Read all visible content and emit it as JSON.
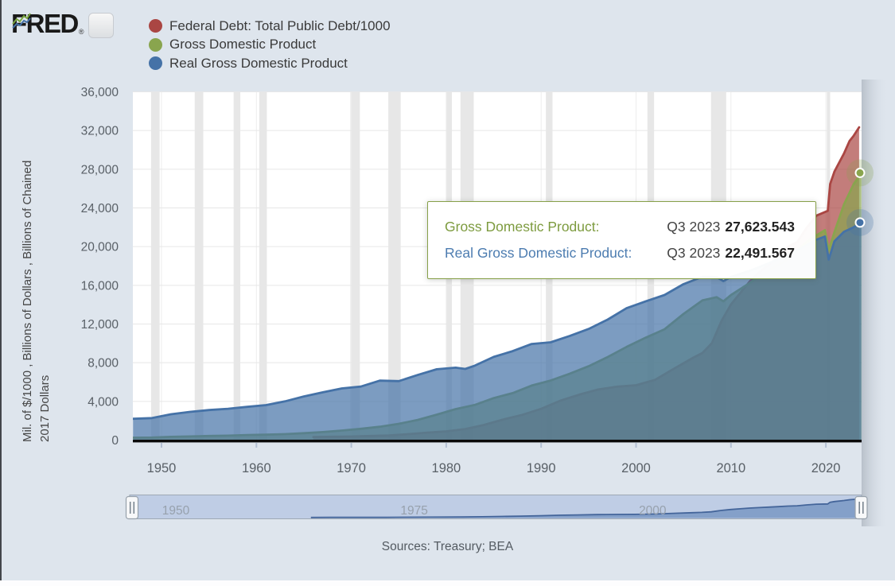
{
  "header": {
    "brand": "FRED",
    "brand_registered": "®",
    "logo_icon": "fred-sparkline-icon",
    "legend": [
      {
        "label": "Federal Debt: Total Public Debt/1000",
        "color": "#aa4643"
      },
      {
        "label": "Gross Domestic Product",
        "color": "#89a54e"
      },
      {
        "label": "Real Gross Domestic Product",
        "color": "#4572a7"
      }
    ]
  },
  "y_axis": {
    "title_line1": "Mil. of $/1000 , Billions of Dollars , Billions of Chained",
    "title_line2": "2017 Dollars"
  },
  "tooltip": {
    "rows": [
      {
        "label": "Gross Domestic Product:",
        "date": "Q3 2023",
        "value": "27,623.543",
        "color": "#7d9b3f"
      },
      {
        "label": "Real Gross Domestic Product:",
        "date": "Q3 2023",
        "value": "22,491.567",
        "color": "#4c7cb0"
      }
    ]
  },
  "slider": {
    "labels": [
      {
        "text": "1950",
        "year": 1950
      },
      {
        "text": "1975",
        "year": 1975
      },
      {
        "text": "2000",
        "year": 2000
      }
    ]
  },
  "footer": {
    "sources": "Sources: Treasury; BEA"
  },
  "chart_data": {
    "type": "area",
    "x_range": [
      1947,
      2023.75
    ],
    "ylim": [
      0,
      36000
    ],
    "grid": true,
    "legend_position": "top-left",
    "y_ticks": [
      0,
      4000,
      8000,
      12000,
      16000,
      20000,
      24000,
      28000,
      32000,
      36000
    ],
    "y_tick_labels": [
      "0",
      "4,000",
      "8,000",
      "12,000",
      "16,000",
      "20,000",
      "24,000",
      "28,000",
      "32,000",
      "36,000"
    ],
    "x_ticks": [
      1950,
      1960,
      1970,
      1980,
      1990,
      2000,
      2010,
      2020
    ],
    "x_tick_labels": [
      "1950",
      "1960",
      "1970",
      "1980",
      "1990",
      "2000",
      "2010",
      "2020"
    ],
    "recessions": [
      [
        1948.9,
        1949.8
      ],
      [
        1953.5,
        1954.4
      ],
      [
        1957.6,
        1958.3
      ],
      [
        1960.3,
        1961.1
      ],
      [
        1969.9,
        1970.9
      ],
      [
        1973.9,
        1975.2
      ],
      [
        1980.0,
        1980.6
      ],
      [
        1981.5,
        1982.9
      ],
      [
        1990.5,
        1991.2
      ],
      [
        2001.2,
        2001.9
      ],
      [
        2007.9,
        2009.5
      ],
      [
        2020.1,
        2020.45
      ]
    ],
    "series": [
      {
        "name": "Federal Debt: Total Public Debt/1000",
        "units": "Mil. of $/1000",
        "color": "#aa4643",
        "points": [
          [
            1966,
            320
          ],
          [
            1968,
            348
          ],
          [
            1970,
            371
          ],
          [
            1972,
            427
          ],
          [
            1974,
            475
          ],
          [
            1976,
            620
          ],
          [
            1978,
            772
          ],
          [
            1980,
            908
          ],
          [
            1982,
            1142
          ],
          [
            1984,
            1573
          ],
          [
            1986,
            2125
          ],
          [
            1988,
            2602
          ],
          [
            1990,
            3233
          ],
          [
            1992,
            4065
          ],
          [
            1994,
            4693
          ],
          [
            1996,
            5225
          ],
          [
            1998,
            5526
          ],
          [
            2000,
            5674
          ],
          [
            2002,
            6228
          ],
          [
            2004,
            7379
          ],
          [
            2006,
            8507
          ],
          [
            2007,
            9008
          ],
          [
            2008,
            10025
          ],
          [
            2009,
            12311
          ],
          [
            2010,
            14025
          ],
          [
            2011,
            15223
          ],
          [
            2012,
            16433
          ],
          [
            2013,
            17352
          ],
          [
            2014,
            18141
          ],
          [
            2015,
            18922
          ],
          [
            2016,
            19977
          ],
          [
            2017,
            20493
          ],
          [
            2018,
            21974
          ],
          [
            2019,
            23201
          ],
          [
            2020.2,
            23700
          ],
          [
            2020.45,
            26477
          ],
          [
            2020.9,
            27748
          ],
          [
            2021.9,
            29617
          ],
          [
            2022.5,
            30928
          ],
          [
            2022.9,
            31420
          ],
          [
            2023.5,
            32332
          ]
        ]
      },
      {
        "name": "Gross Domestic Product",
        "units": "Billions of Dollars",
        "color": "#89a54e",
        "points": [
          [
            1947,
            243
          ],
          [
            1949,
            267
          ],
          [
            1951,
            339
          ],
          [
            1953,
            379
          ],
          [
            1955,
            426
          ],
          [
            1957,
            461
          ],
          [
            1959,
            522
          ],
          [
            1961,
            563
          ],
          [
            1963,
            618
          ],
          [
            1965,
            712
          ],
          [
            1967,
            832
          ],
          [
            1969,
            985
          ],
          [
            1971,
            1164
          ],
          [
            1973,
            1382
          ],
          [
            1975,
            1685
          ],
          [
            1977,
            2086
          ],
          [
            1979,
            2627
          ],
          [
            1981,
            3207
          ],
          [
            1983,
            3634
          ],
          [
            1985,
            4339
          ],
          [
            1987,
            4855
          ],
          [
            1989,
            5642
          ],
          [
            1991,
            6158
          ],
          [
            1993,
            6858
          ],
          [
            1995,
            7639
          ],
          [
            1997,
            8577
          ],
          [
            1999,
            9631
          ],
          [
            2001,
            10582
          ],
          [
            2003,
            11456
          ],
          [
            2005,
            13039
          ],
          [
            2007,
            14452
          ],
          [
            2008.5,
            14769
          ],
          [
            2009.2,
            14340
          ],
          [
            2010,
            14992
          ],
          [
            2012,
            16254
          ],
          [
            2014,
            17550
          ],
          [
            2016,
            18695
          ],
          [
            2018,
            20533
          ],
          [
            2019.9,
            21706
          ],
          [
            2020.3,
            19636
          ],
          [
            2020.9,
            21478
          ],
          [
            2021.9,
            24349
          ],
          [
            2022.9,
            26408
          ],
          [
            2023.75,
            27623.543
          ]
        ]
      },
      {
        "name": "Real Gross Domestic Product",
        "units": "Billions of Chained 2017 Dollars",
        "color": "#4572a7",
        "points": [
          [
            1947,
            2200
          ],
          [
            1949,
            2278
          ],
          [
            1951,
            2674
          ],
          [
            1953,
            2914
          ],
          [
            1955,
            3103
          ],
          [
            1957,
            3236
          ],
          [
            1959,
            3435
          ],
          [
            1961,
            3615
          ],
          [
            1963,
            4003
          ],
          [
            1965,
            4509
          ],
          [
            1967,
            4938
          ],
          [
            1969,
            5342
          ],
          [
            1971,
            5528
          ],
          [
            1973,
            6148
          ],
          [
            1975,
            6101
          ],
          [
            1977,
            6728
          ],
          [
            1979,
            7325
          ],
          [
            1981,
            7491
          ],
          [
            1982,
            7356
          ],
          [
            1983,
            7695
          ],
          [
            1985,
            8595
          ],
          [
            1987,
            9201
          ],
          [
            1989,
            9937
          ],
          [
            1991,
            10113
          ],
          [
            1993,
            10758
          ],
          [
            1995,
            11491
          ],
          [
            1997,
            12456
          ],
          [
            1999,
            13632
          ],
          [
            2001,
            14338
          ],
          [
            2003,
            15004
          ],
          [
            2005,
            16121
          ],
          [
            2007,
            16892
          ],
          [
            2008.5,
            16850
          ],
          [
            2009.2,
            16442
          ],
          [
            2010,
            16863
          ],
          [
            2012,
            17510
          ],
          [
            2014,
            18282
          ],
          [
            2016,
            19167
          ],
          [
            2017,
            19612
          ],
          [
            2019,
            20715
          ],
          [
            2019.9,
            21050
          ],
          [
            2020.3,
            18660
          ],
          [
            2020.9,
            20548
          ],
          [
            2021.9,
            21538
          ],
          [
            2022.9,
            21990
          ],
          [
            2023.75,
            22491.567
          ]
        ]
      }
    ],
    "markers": [
      {
        "series": "Gross Domestic Product",
        "x": 2023.75,
        "value": 27623.543,
        "color": "#89a54e"
      },
      {
        "series": "Real Gross Domestic Product",
        "x": 2023.75,
        "value": 22491.567,
        "color": "#4572a7"
      }
    ],
    "overview_series": "Federal Debt: Total Public Debt/1000"
  }
}
